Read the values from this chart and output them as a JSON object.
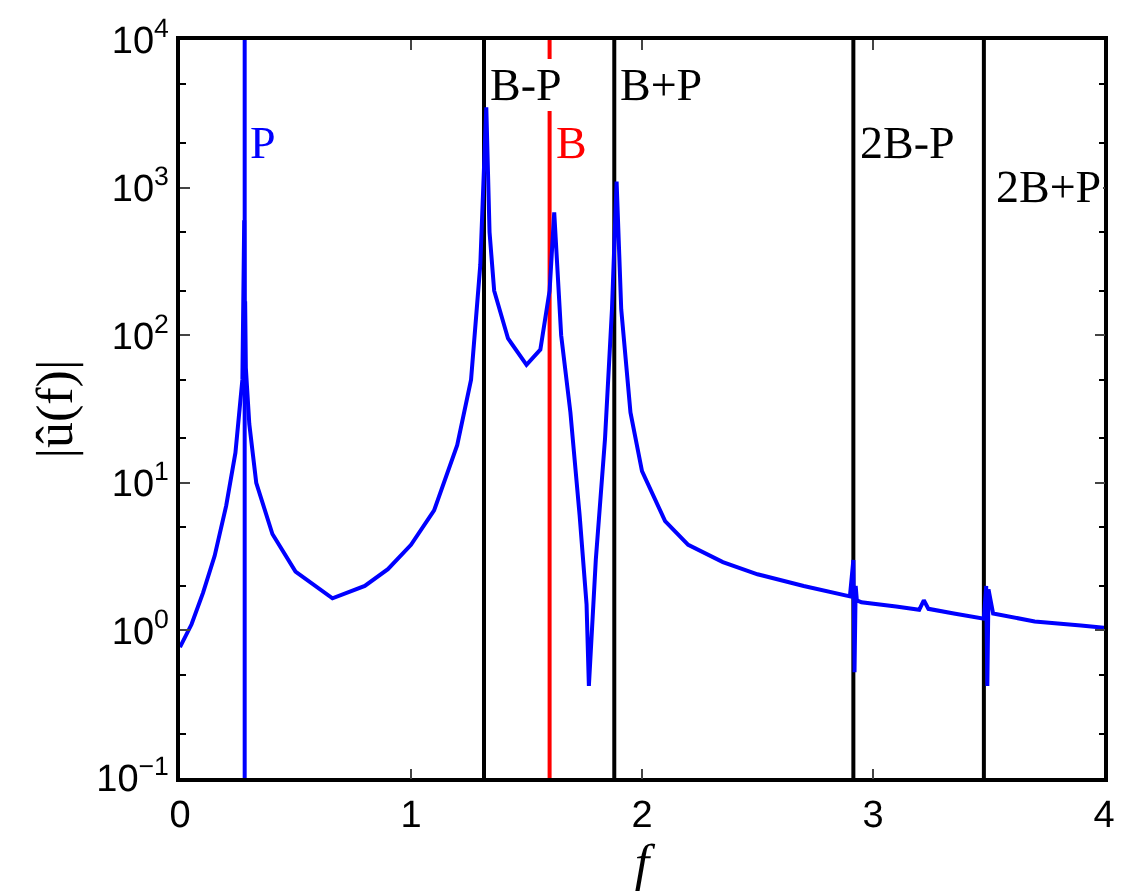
{
  "chart_data": {
    "type": "line",
    "xlabel": "f",
    "ylabel": "|û(f)|",
    "log": "y",
    "marker": "none",
    "line_style": "solid",
    "xlim": [
      0,
      4
    ],
    "xticks": [
      0,
      1,
      2,
      3,
      4
    ],
    "ylim": [
      0.1,
      10000
    ],
    "yticks": [
      {
        "value": 0.1,
        "label": "10$^{−1}$"
      },
      {
        "value": 1,
        "label": "10$^{0}$"
      },
      {
        "value": 10,
        "label": "10$^{1}$"
      },
      {
        "value": 100,
        "label": "10$^{2}$"
      },
      {
        "value": 1000,
        "label": "10$^{3}$"
      },
      {
        "value": 10000,
        "label": "10$^{4}$"
      }
    ],
    "series": [
      {
        "color": "#0000ff",
        "x": [
          0,
          0.05,
          0.1,
          0.15,
          0.2,
          0.24,
          0.27,
          0.278,
          0.28,
          0.282,
          0.285,
          0.29,
          0.3,
          0.33,
          0.4,
          0.5,
          0.66,
          0.8,
          0.9,
          1.0,
          1.1,
          1.2,
          1.26,
          1.3,
          1.326,
          1.34,
          1.36,
          1.42,
          1.5,
          1.56,
          1.6,
          1.62,
          1.65,
          1.69,
          1.73,
          1.76,
          1.77,
          1.8,
          1.84,
          1.87,
          1.89,
          1.91,
          1.95,
          2.0,
          2.1,
          2.2,
          2.35,
          2.5,
          2.7,
          2.9,
          2.915,
          2.92,
          2.925,
          2.93,
          2.95,
          3.1,
          3.2,
          3.22,
          3.24,
          3.35,
          3.48,
          3.49,
          3.495,
          3.5,
          3.52,
          3.7,
          3.9,
          4.0
        ],
        "values": [
          0.77,
          1.1,
          1.8,
          3.2,
          7,
          16,
          50,
          600,
          60,
          170,
          60,
          45,
          25,
          10,
          4.5,
          2.5,
          1.65,
          2.0,
          2.6,
          3.8,
          6.5,
          18,
          50,
          300,
          3500,
          500,
          200,
          95,
          63,
          80,
          200,
          680,
          100,
          30,
          6,
          1.5,
          0.42,
          3,
          20,
          150,
          1100,
          150,
          30,
          12,
          5.5,
          3.8,
          2.9,
          2.4,
          2.0,
          1.7,
          3.0,
          0.52,
          2.0,
          1.6,
          1.55,
          1.45,
          1.38,
          1.6,
          1.4,
          1.3,
          1.2,
          2.0,
          0.42,
          1.9,
          1.3,
          1.15,
          1.08,
          1.04
        ]
      }
    ],
    "ref_lines": [
      {
        "axis": "x",
        "value": 0.28,
        "label": "P",
        "color": "#0000ff"
      },
      {
        "axis": "x",
        "value": 1.316,
        "label": "B-P",
        "color": "#000000"
      },
      {
        "axis": "x",
        "value": 1.6,
        "label": "B",
        "color": "#ff0000"
      },
      {
        "axis": "x",
        "value": 1.88,
        "label": "B+P",
        "color": "#000000"
      },
      {
        "axis": "x",
        "value": 2.915,
        "label": "2B-P",
        "color": "#000000"
      },
      {
        "axis": "x",
        "value": 3.48,
        "label": "2B+P",
        "color": "#000000"
      }
    ]
  }
}
